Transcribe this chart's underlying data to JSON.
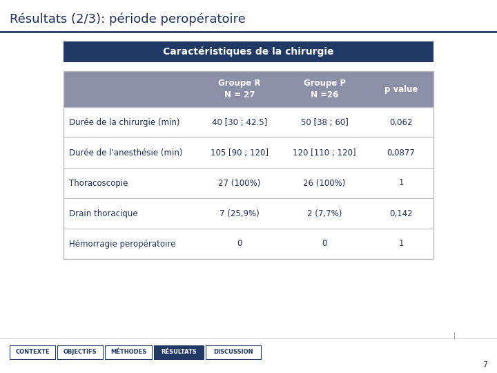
{
  "title": "Résultats (2/3): période peropératoire",
  "section_header": "Caractéristiques de la chirurgie",
  "col_headers": [
    "",
    "Groupe R\nN = 27",
    "Groupe P\nN =26",
    "p value"
  ],
  "rows": [
    [
      "Durée de la chirurgie (min)",
      "40 [30 ; 42.5]",
      "50 [38 ; 60]",
      "0,062"
    ],
    [
      "Durée de l'anesthésie (min)",
      "105 [90 ; 120]",
      "120 [110 ; 120]",
      "0,0877"
    ],
    [
      "Thoracoscopie",
      "27 (100%)",
      "26 (100%)",
      "1"
    ],
    [
      "Drain thoracique",
      "7 (25,9%)",
      "2 (7,7%)",
      "0,142"
    ],
    [
      "Hémorragie peropératoire",
      "0",
      "0",
      "1"
    ]
  ],
  "nav_buttons": [
    "CONTEXTE",
    "OBJECTIFS",
    "MÉTHODES",
    "RÉSULTATS",
    "DISCUSSION"
  ],
  "active_button": "RÉSULTATS",
  "bg_color": "#FFFFFF",
  "title_color": "#1F2D5A",
  "section_header_bg": "#1F3864",
  "section_header_text": "#FFFFFF",
  "table_header_bg": "#8B8FA8",
  "table_header_text": "#FFFFFF",
  "row_bg": "#FFFFFF",
  "row_text_color": "#1F2D5A",
  "table_border_color": "#BBBBBB",
  "title_line_color": "#1F3864",
  "nav_active_bg": "#1F3864",
  "nav_active_text": "#FFFFFF",
  "nav_inactive_bg": "#FFFFFF",
  "nav_inactive_text": "#1F3864",
  "nav_border_color": "#1F3864",
  "page_number": "7"
}
